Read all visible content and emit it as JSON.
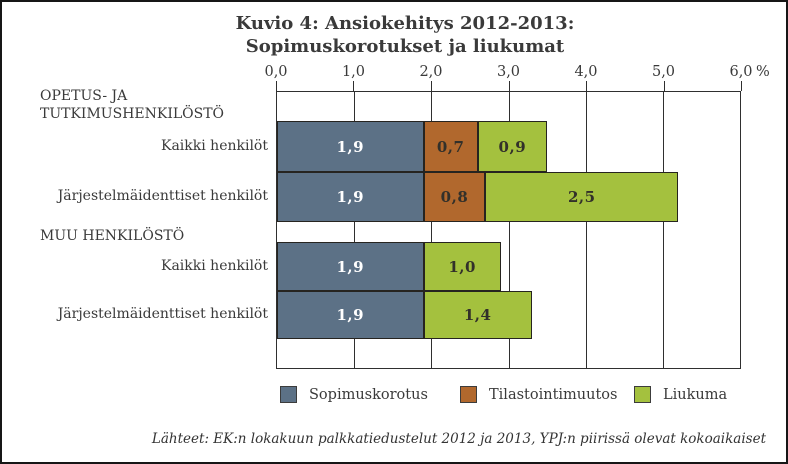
{
  "header": {
    "title_line1": "Kuvio 4: Ansiokehitys 2012-2013:",
    "title_line2": "Sopimuskorotukset ja liukumat"
  },
  "chart_data": {
    "type": "bar",
    "orientation": "horizontal",
    "stacked": true,
    "title": "Kuvio 4: Ansiokehitys 2012-2013: Sopimuskorotukset ja liukumat",
    "unit": "%",
    "xlim": [
      0,
      6
    ],
    "x_tick_labels": [
      "0,0",
      "1,0",
      "2,0",
      "3,0",
      "4,0",
      "5,0",
      "6,0"
    ],
    "grid": true,
    "legend_position": "bottom",
    "series": [
      {
        "name": "Sopimuskorotus",
        "color": "#5c7186",
        "label_color": "#ffffff"
      },
      {
        "name": "Tilastointimuutos",
        "color": "#b1682d",
        "label_color": "#32302a"
      },
      {
        "name": "Liukuma",
        "color": "#a4c13e",
        "label_color": "#32302a"
      }
    ],
    "groups": [
      {
        "header": "OPETUS- JA\nTUTKIMUSHENKILÖSTÖ",
        "rows": [
          {
            "label": "Kaikki henkilöt",
            "values": [
              1.9,
              0.7,
              0.9
            ],
            "labels": [
              "1,9",
              "0,7",
              "0,9"
            ]
          },
          {
            "label": "Järjestelmäidenttiset henkilöt",
            "values": [
              1.9,
              0.8,
              2.5
            ],
            "labels": [
              "1,9",
              "0,8",
              "2,5"
            ]
          }
        ]
      },
      {
        "header": "MUU HENKILÖSTÖ",
        "rows": [
          {
            "label": "Kaikki henkilöt",
            "values": [
              1.9,
              0,
              1.0
            ],
            "labels": [
              "1,9",
              "",
              "1,0"
            ]
          },
          {
            "label": "Järjestelmäidenttiset henkilöt",
            "values": [
              1.9,
              0,
              1.4
            ],
            "labels": [
              "1,9",
              "",
              "1,4"
            ]
          }
        ]
      }
    ],
    "source": "Lähteet: EK:n lokakuun palkkatiedustelut 2012 ja 2013, YPJ:n piirissä olevat kokoaikaiset"
  }
}
